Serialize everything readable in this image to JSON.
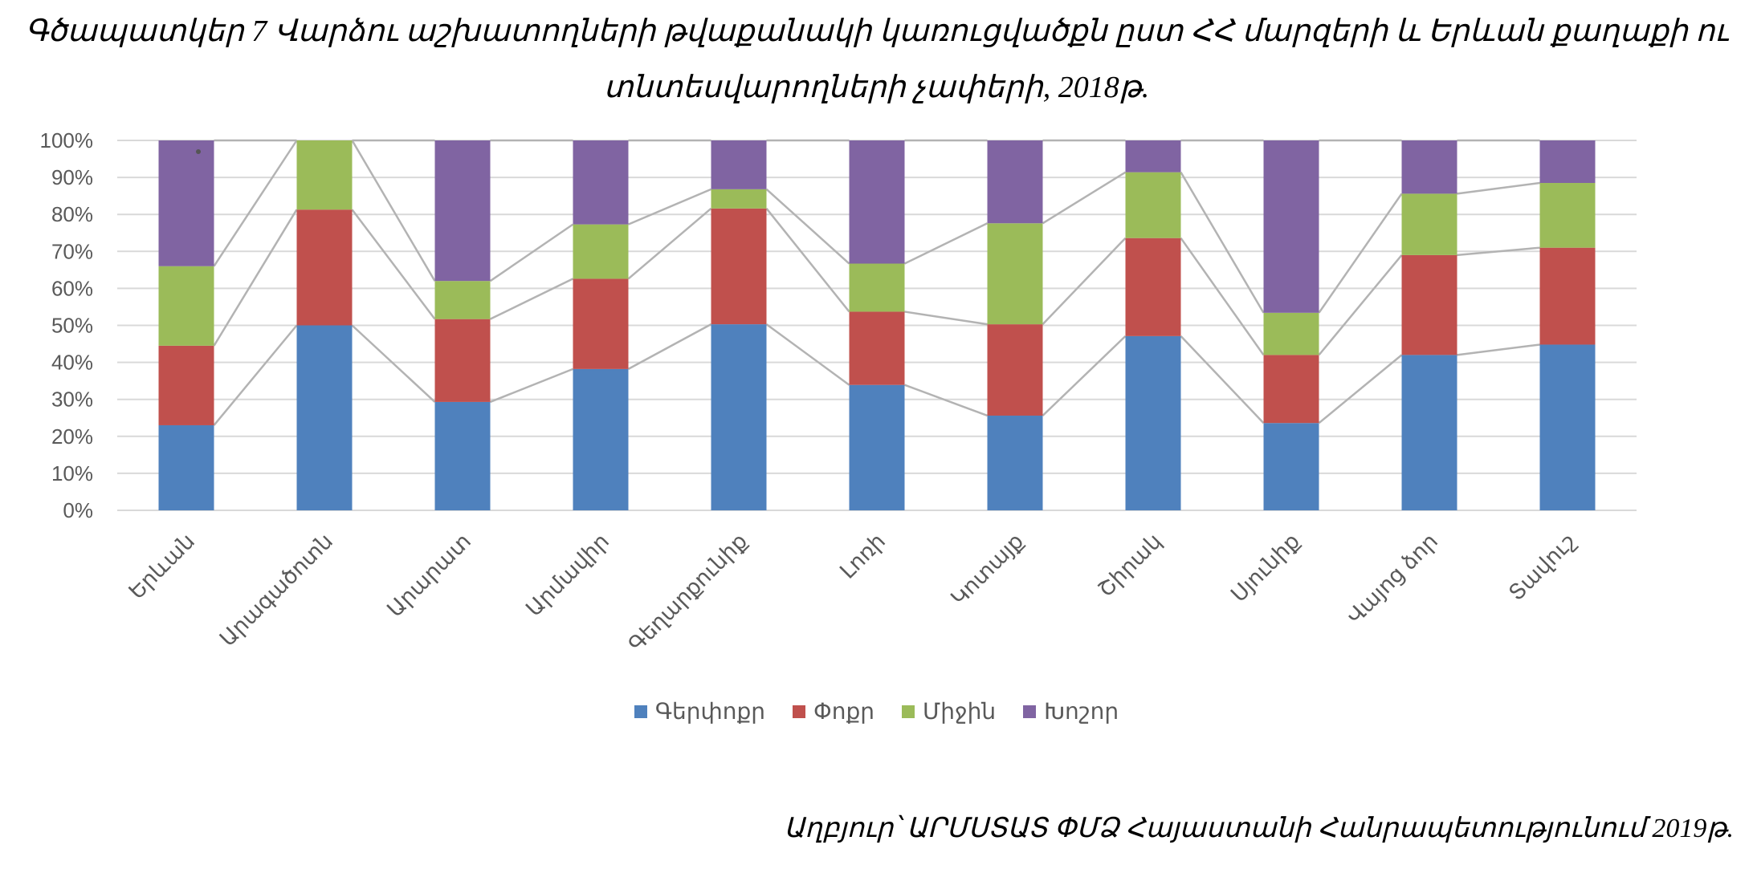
{
  "chart_data": {
    "type": "bar",
    "stacked": "percent",
    "title": "Գծապատկեր 7 Վարձու աշխատողների թվաքանակի կառուցվածքն ըստ ՀՀ մարզերի և Երևան քաղաքի ու",
    "title_line2": "տնտեսվարողների չափերի, 2018թ.",
    "categories": [
      "Երևան",
      "Արագածոտն",
      "Արարատ",
      "Արմավիր",
      "Գեղարքունիք",
      "Լոռի",
      "Կոտայք",
      "Շիրակ",
      "Սյունիք",
      "Վայոց ձոր",
      "Տավուշ"
    ],
    "series": [
      {
        "name": "Գերփոքր",
        "color": "#4f81bd",
        "values": [
          23,
          50,
          29.3,
          38.2,
          50.3,
          33.9,
          25.6,
          47.1,
          23.6,
          42,
          44.8
        ]
      },
      {
        "name": "Փոքր",
        "color": "#c0504d",
        "values": [
          21.5,
          31.3,
          22.4,
          24.4,
          31.3,
          19.8,
          24.7,
          26.5,
          18.4,
          27,
          26.2
        ]
      },
      {
        "name": "Միջին",
        "color": "#9bbb59",
        "values": [
          21.5,
          18.7,
          10.3,
          14.7,
          5.2,
          13,
          27.3,
          17.8,
          11.4,
          16.6,
          17.5
        ]
      },
      {
        "name": "Խոշոր",
        "color": "#8064a2",
        "values": [
          34,
          0,
          38,
          22.7,
          13.2,
          33.3,
          22.4,
          8.6,
          46.6,
          14.4,
          11.5
        ]
      }
    ],
    "yticks": [
      "0%",
      "10%",
      "20%",
      "30%",
      "40%",
      "50%",
      "60%",
      "70%",
      "80%",
      "90%",
      "100%"
    ],
    "ylim": [
      0,
      100
    ],
    "grid": true,
    "series_lines": true,
    "legend": "bottom",
    "source": "Աղբյուր՝ ԱՐՄՍՏԱՏ ՓՄՁ Հայաստանի Հանրապետությունում 2019թ."
  }
}
